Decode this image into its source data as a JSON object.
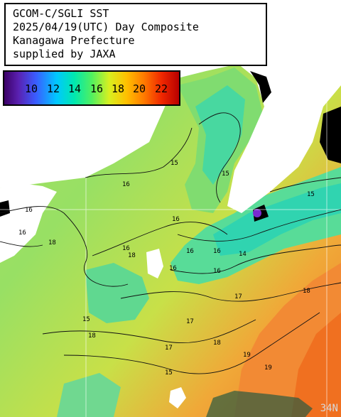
{
  "title": {
    "line1": "GCOM-C/SGLI SST",
    "line2": "2025/04/19(UTC) Day Composite",
    "line3": "Kanagawa Prefecture",
    "line4": "supplied by JAXA"
  },
  "colorbar": {
    "ticks": [
      "10",
      "12",
      "14",
      "16",
      "18",
      "20",
      "22"
    ],
    "colors": [
      "#3b0066",
      "#3a5cff",
      "#00c8ff",
      "#50f060",
      "#d8f020",
      "#ff7a00",
      "#b80000"
    ]
  },
  "latitude_label": "34N",
  "contour_labels": [
    "15",
    "16",
    "16",
    "18",
    "16",
    "16",
    "18",
    "16",
    "16",
    "17",
    "15",
    "17",
    "18",
    "15",
    "16",
    "14",
    "16",
    "16",
    "18",
    "19",
    "17",
    "18",
    "19",
    "15",
    "15"
  ],
  "colors": {
    "land": "#ffffff",
    "no_data": "#000000",
    "sea_cool": "#38d8a0",
    "sea_mid": "#9ae060",
    "sea_warm": "#f09030",
    "grid": "#ffffff"
  }
}
